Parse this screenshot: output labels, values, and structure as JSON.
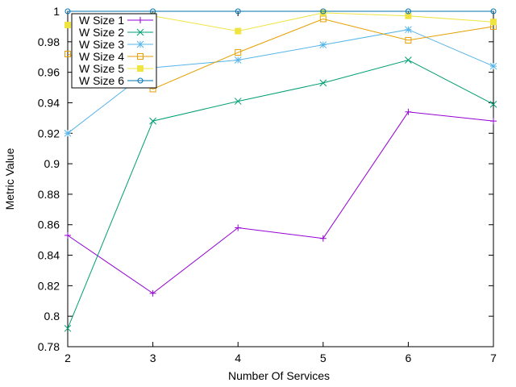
{
  "chart_data": {
    "type": "line",
    "title": "",
    "xlabel": "Number Of Services",
    "ylabel": "Metric Value",
    "x": [
      2,
      3,
      4,
      5,
      6,
      7
    ],
    "xlim": [
      2,
      7
    ],
    "ylim": [
      0.78,
      1.0
    ],
    "xticks": [
      2,
      3,
      4,
      5,
      6,
      7
    ],
    "yticks": [
      0.78,
      0.8,
      0.82,
      0.84,
      0.86,
      0.88,
      0.9,
      0.92,
      0.94,
      0.96,
      0.98,
      1
    ],
    "ytick_labels": [
      "0.78",
      "0.8",
      "0.82",
      "0.84",
      "0.86",
      "0.88",
      "0.9",
      "0.92",
      "0.94",
      "0.96",
      "0.98",
      "1"
    ],
    "xtick_labels": [
      "2",
      "3",
      "4",
      "5",
      "6",
      "7"
    ],
    "grid": false,
    "legend_position": "top-left",
    "series": [
      {
        "name": "W Size 1",
        "color": "#9400d3",
        "marker": "plus",
        "values": [
          0.853,
          0.815,
          0.858,
          0.851,
          0.934,
          0.928
        ]
      },
      {
        "name": "W Size 2",
        "color": "#009e73",
        "marker": "cross",
        "values": [
          0.792,
          0.928,
          0.941,
          0.953,
          0.968,
          0.939
        ]
      },
      {
        "name": "W Size 3",
        "color": "#56b4e9",
        "marker": "star",
        "values": [
          0.92,
          0.963,
          0.968,
          0.978,
          0.988,
          0.964
        ]
      },
      {
        "name": "W Size 4",
        "color": "#e69f00",
        "marker": "open-square",
        "values": [
          0.972,
          0.949,
          0.973,
          0.995,
          0.981,
          0.99
        ]
      },
      {
        "name": "W Size 5",
        "color": "#f0e442",
        "marker": "filled-square",
        "values": [
          0.991,
          0.997,
          0.987,
          0.999,
          0.997,
          0.993
        ]
      },
      {
        "name": "W Size 6",
        "color": "#0072b2",
        "marker": "open-circle",
        "values": [
          1.0,
          1.0,
          1.0,
          1.0,
          1.0,
          1.0
        ]
      }
    ]
  }
}
